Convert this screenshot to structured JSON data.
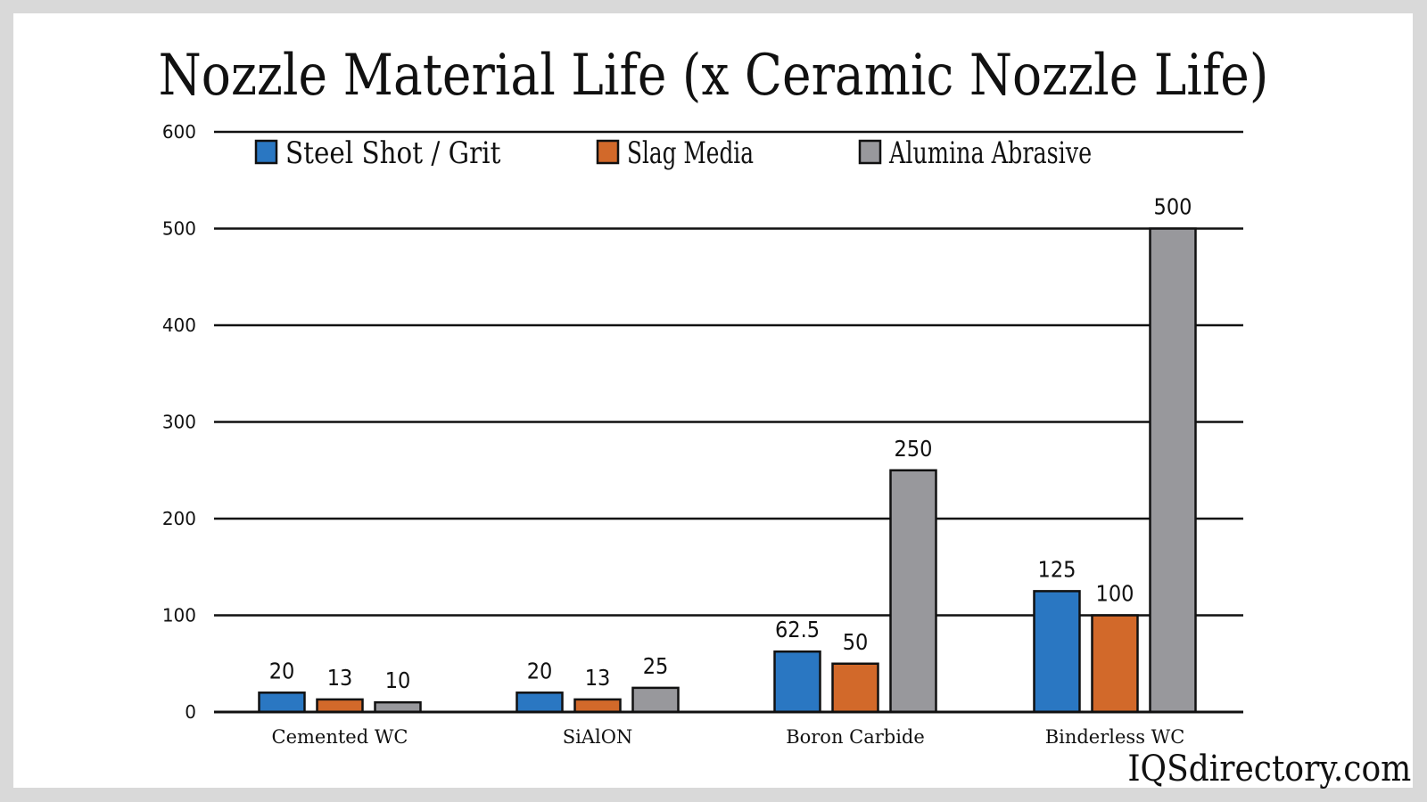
{
  "chart_data": {
    "type": "bar",
    "title": "Nozzle Material Life (x Ceramic Nozzle Life)",
    "xlabel": "",
    "ylabel": "",
    "ylim": [
      0,
      600
    ],
    "yticks": [
      0,
      100,
      200,
      300,
      400,
      500,
      600
    ],
    "grid": true,
    "legend_position": "top",
    "categories": [
      "Cemented WC",
      "SiAlON",
      "Boron Carbide",
      "Binderless WC"
    ],
    "series": [
      {
        "name": "Steel Shot / Grit",
        "color": "#2a77c2",
        "values": [
          20,
          20,
          62.5,
          125
        ]
      },
      {
        "name": "Slag Media",
        "color": "#d2692a",
        "values": [
          13,
          13,
          50,
          100
        ]
      },
      {
        "name": "Alumina Abrasive",
        "color": "#98989c",
        "values": [
          10,
          25,
          250,
          500
        ]
      }
    ],
    "value_labels": [
      [
        "20",
        "20",
        "62.5",
        "125"
      ],
      [
        "13",
        "13",
        "50",
        "100"
      ],
      [
        "10",
        "25",
        "250",
        "500"
      ]
    ]
  },
  "watermark": "IQSdirectory.com"
}
